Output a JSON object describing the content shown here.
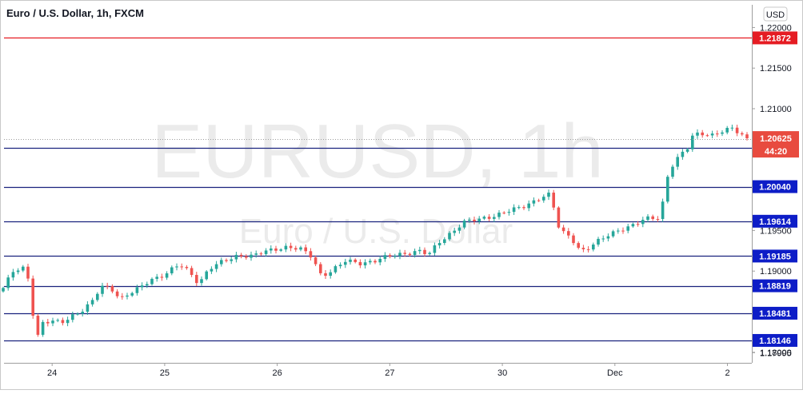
{
  "chart_data": {
    "type": "candlestick",
    "title": "Euro / U.S. Dollar, 1h, FXCM",
    "watermark": "EURUSD, 1h",
    "watermark_sub": "Euro / U.S. Dollar",
    "currency_button": "USD",
    "ylim": [
      1.1787,
      1.2226
    ],
    "y_ticks": [
      "1.22000",
      "1.21500",
      "1.21000",
      "1.20500",
      "1.20000",
      "1.19500",
      "1.19000",
      "1.18500",
      "1.18000",
      "1.17995"
    ],
    "x_ticks": [
      {
        "label": "24",
        "t": 10
      },
      {
        "label": "25",
        "t": 33
      },
      {
        "label": "26",
        "t": 56
      },
      {
        "label": "27",
        "t": 79
      },
      {
        "label": "30",
        "t": 102
      },
      {
        "label": "Dec",
        "t": 125
      },
      {
        "label": "2",
        "t": 148
      }
    ],
    "last_price": "1.20625",
    "countdown": "44:20",
    "colors": {
      "up": "#26a69a",
      "down": "#ef5350",
      "resistance": "#e51c23",
      "support": "#1a237e",
      "support_label": "#0d1dc7",
      "price_label": "#e84b3f",
      "dotted": "#9e9e9e"
    },
    "levels": [
      {
        "value": 1.21872,
        "label": "1.21872",
        "kind": "resistance"
      },
      {
        "value": 1.20514,
        "label": "1.20514",
        "kind": "support"
      },
      {
        "value": 1.2004,
        "label": "1.20040",
        "kind": "support"
      },
      {
        "value": 1.19614,
        "label": "1.19614",
        "kind": "support"
      },
      {
        "value": 1.19185,
        "label": "1.19185",
        "kind": "support"
      },
      {
        "value": 1.18819,
        "label": "1.18819",
        "kind": "support"
      },
      {
        "value": 1.18481,
        "label": "1.18481",
        "kind": "support"
      },
      {
        "value": 1.18146,
        "label": "1.18146",
        "kind": "support"
      }
    ],
    "close_path": [
      [
        0,
        1.1878
      ],
      [
        2,
        1.19
      ],
      [
        4,
        1.1905
      ],
      [
        5,
        1.1895
      ],
      [
        6,
        1.185
      ],
      [
        7,
        1.1818
      ],
      [
        8,
        1.1835
      ],
      [
        10,
        1.1838
      ],
      [
        12,
        1.1838
      ],
      [
        14,
        1.1845
      ],
      [
        16,
        1.185
      ],
      [
        18,
        1.186
      ],
      [
        20,
        1.1882
      ],
      [
        22,
        1.188
      ],
      [
        24,
        1.1865
      ],
      [
        26,
        1.1872
      ],
      [
        28,
        1.188
      ],
      [
        30,
        1.189
      ],
      [
        33,
        1.1895
      ],
      [
        36,
        1.1908
      ],
      [
        38,
        1.19
      ],
      [
        40,
        1.1885
      ],
      [
        42,
        1.1902
      ],
      [
        45,
        1.1912
      ],
      [
        48,
        1.192
      ],
      [
        51,
        1.1918
      ],
      [
        54,
        1.1925
      ],
      [
        56,
        1.1928
      ],
      [
        58,
        1.193
      ],
      [
        61,
        1.1926
      ],
      [
        63,
        1.1918
      ],
      [
        65,
        1.1895
      ],
      [
        67,
        1.19
      ],
      [
        70,
        1.1912
      ],
      [
        73,
        1.191
      ],
      [
        76,
        1.1913
      ],
      [
        79,
        1.1918
      ],
      [
        82,
        1.1922
      ],
      [
        85,
        1.1925
      ],
      [
        87,
        1.192
      ],
      [
        89,
        1.1935
      ],
      [
        91,
        1.1945
      ],
      [
        94,
        1.196
      ],
      [
        97,
        1.1963
      ],
      [
        100,
        1.1968
      ],
      [
        102,
        1.1972
      ],
      [
        104,
        1.1975
      ],
      [
        106,
        1.1978
      ],
      [
        108,
        1.1985
      ],
      [
        110,
        1.1992
      ],
      [
        112,
        1.1995
      ],
      [
        113,
        1.196
      ],
      [
        114,
        1.1948
      ],
      [
        116,
        1.1942
      ],
      [
        118,
        1.1925
      ],
      [
        120,
        1.193
      ],
      [
        122,
        1.1938
      ],
      [
        124,
        1.1945
      ],
      [
        126,
        1.1952
      ],
      [
        128,
        1.1955
      ],
      [
        130,
        1.196
      ],
      [
        132,
        1.1965
      ],
      [
        134,
        1.1966
      ],
      [
        135,
        1.199
      ],
      [
        136,
        1.2025
      ],
      [
        138,
        1.204
      ],
      [
        140,
        1.2052
      ],
      [
        141,
        1.2068
      ],
      [
        143,
        1.207
      ],
      [
        145,
        1.2068
      ],
      [
        147,
        1.2072
      ],
      [
        149,
        1.2075
      ],
      [
        151,
        1.2068
      ],
      [
        152,
        1.2063
      ]
    ]
  }
}
